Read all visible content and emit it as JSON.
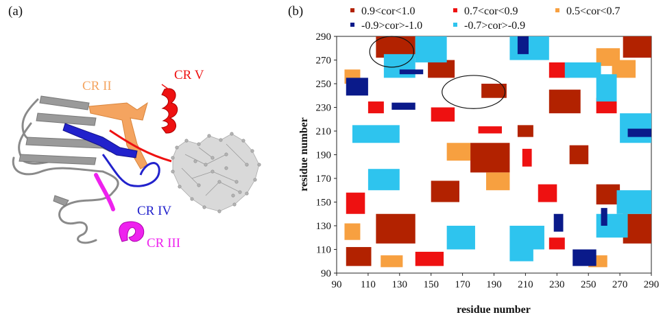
{
  "figure": {
    "panel_a_label": "(a)",
    "panel_b_label": "(b)"
  },
  "structure_labels": [
    {
      "text": "CR II",
      "color": "#f4a460"
    },
    {
      "text": "CR V",
      "color": "#ee1111"
    },
    {
      "text": "CR IV",
      "color": "#2222cc"
    },
    {
      "text": "CR III",
      "color": "#ee22ee"
    }
  ],
  "legend": [
    {
      "label": "0.9<cor<1.0",
      "color": "#b22200"
    },
    {
      "label": "0.7<cor<0.9",
      "color": "#ee1111"
    },
    {
      "label": "0.5<cor<0.7",
      "color": "#f7a040"
    },
    {
      "label": "-0.9>cor>-1.0",
      "color": "#0a1a8a"
    },
    {
      "label": "-0.7>cor>-0.9",
      "color": "#2ec4ee"
    }
  ],
  "chart_data": {
    "type": "heatmap",
    "xlabel": "residue number",
    "ylabel": "residue number",
    "xlim": [
      90,
      290
    ],
    "ylim": [
      90,
      290
    ],
    "x_ticks": [
      90,
      110,
      130,
      150,
      170,
      190,
      210,
      230,
      250,
      270,
      290
    ],
    "y_ticks": [
      90,
      110,
      130,
      150,
      170,
      190,
      210,
      230,
      250,
      270,
      290
    ],
    "blocks": [
      {
        "x": [
          115,
          140
        ],
        "y": [
          115,
          140
        ],
        "cls": "0.9<cor<1.0"
      },
      {
        "x": [
          175,
          200
        ],
        "y": [
          175,
          200
        ],
        "cls": "0.9<cor<1.0"
      },
      {
        "x": [
          272,
          290
        ],
        "y": [
          115,
          140
        ],
        "cls": "0.9<cor<1.0"
      },
      {
        "x": [
          115,
          140
        ],
        "y": [
          272,
          290
        ],
        "cls": "0.9<cor<1.0"
      },
      {
        "x": [
          272,
          290
        ],
        "y": [
          272,
          290
        ],
        "cls": "0.9<cor<1.0"
      },
      {
        "x": [
          182,
          198
        ],
        "y": [
          238,
          250
        ],
        "cls": "0.9<cor<1.0"
      },
      {
        "x": [
          238,
          250
        ],
        "y": [
          182,
          198
        ],
        "cls": "0.9<cor<1.0"
      },
      {
        "x": [
          96,
          112
        ],
        "y": [
          96,
          112
        ],
        "cls": "0.9<cor<1.0"
      },
      {
        "x": [
          148,
          165
        ],
        "y": [
          255,
          270
        ],
        "cls": "0.9<cor<1.0"
      },
      {
        "x": [
          255,
          270
        ],
        "y": [
          148,
          165
        ],
        "cls": "0.9<cor<1.0"
      },
      {
        "x": [
          150,
          168
        ],
        "y": [
          150,
          168
        ],
        "cls": "0.9<cor<1.0"
      },
      {
        "x": [
          225,
          245
        ],
        "y": [
          225,
          245
        ],
        "cls": "0.9<cor<1.0"
      },
      {
        "x": [
          205,
          215
        ],
        "y": [
          205,
          215
        ],
        "cls": "0.9<cor<1.0"
      },
      {
        "x": [
          110,
          120
        ],
        "y": [
          225,
          235
        ],
        "cls": "0.7<cor<0.9"
      },
      {
        "x": [
          225,
          235
        ],
        "y": [
          110,
          120
        ],
        "cls": "0.7<cor<0.9"
      },
      {
        "x": [
          255,
          268
        ],
        "y": [
          225,
          238
        ],
        "cls": "0.7<cor<0.9"
      },
      {
        "x": [
          225,
          238
        ],
        "y": [
          255,
          268
        ],
        "cls": "0.7<cor<0.9"
      },
      {
        "x": [
          208,
          214
        ],
        "y": [
          180,
          195
        ],
        "cls": "0.7<cor<0.9"
      },
      {
        "x": [
          180,
          195
        ],
        "y": [
          208,
          214
        ],
        "cls": "0.7<cor<0.9"
      },
      {
        "x": [
          150,
          165
        ],
        "y": [
          218,
          230
        ],
        "cls": "0.7<cor<0.9"
      },
      {
        "x": [
          218,
          230
        ],
        "y": [
          150,
          165
        ],
        "cls": "0.7<cor<0.9"
      },
      {
        "x": [
          96,
          108
        ],
        "y": [
          140,
          158
        ],
        "cls": "0.7<cor<0.9"
      },
      {
        "x": [
          140,
          158
        ],
        "y": [
          96,
          108
        ],
        "cls": "0.7<cor<0.9"
      },
      {
        "x": [
          95,
          105
        ],
        "y": [
          250,
          262
        ],
        "cls": "0.5<cor<0.7"
      },
      {
        "x": [
          250,
          262
        ],
        "y": [
          95,
          105
        ],
        "cls": "0.5<cor<0.7"
      },
      {
        "x": [
          160,
          175
        ],
        "y": [
          185,
          200
        ],
        "cls": "0.5<cor<0.7"
      },
      {
        "x": [
          185,
          200
        ],
        "y": [
          160,
          175
        ],
        "cls": "0.5<cor<0.7"
      },
      {
        "x": [
          255,
          270
        ],
        "y": [
          265,
          280
        ],
        "cls": "0.5<cor<0.7"
      },
      {
        "x": [
          265,
          280
        ],
        "y": [
          255,
          270
        ],
        "cls": "0.5<cor<0.7"
      },
      {
        "x": [
          118,
          132
        ],
        "y": [
          95,
          105
        ],
        "cls": "0.5<cor<0.7"
      },
      {
        "x": [
          95,
          105
        ],
        "y": [
          118,
          132
        ],
        "cls": "0.5<cor<0.7"
      },
      {
        "x": [
          100,
          130
        ],
        "y": [
          200,
          215
        ],
        "cls": "-0.7>cor>-0.9"
      },
      {
        "x": [
          200,
          215
        ],
        "y": [
          100,
          130
        ],
        "cls": "-0.7>cor>-0.9"
      },
      {
        "x": [
          140,
          160
        ],
        "y": [
          268,
          290
        ],
        "cls": "-0.7>cor>-0.9"
      },
      {
        "x": [
          268,
          290
        ],
        "y": [
          140,
          160
        ],
        "cls": "-0.7>cor>-0.9"
      },
      {
        "x": [
          200,
          225
        ],
        "y": [
          270,
          290
        ],
        "cls": "-0.7>cor>-0.9"
      },
      {
        "x": [
          270,
          290
        ],
        "y": [
          200,
          225
        ],
        "cls": "-0.7>cor>-0.9"
      },
      {
        "x": [
          160,
          178
        ],
        "y": [
          110,
          130
        ],
        "cls": "-0.7>cor>-0.9"
      },
      {
        "x": [
          110,
          130
        ],
        "y": [
          160,
          178
        ],
        "cls": "-0.7>cor>-0.9"
      },
      {
        "x": [
          235,
          258
        ],
        "y": [
          255,
          268
        ],
        "cls": "-0.7>cor>-0.9"
      },
      {
        "x": [
          255,
          268
        ],
        "y": [
          235,
          258
        ],
        "cls": "-0.7>cor>-0.9"
      },
      {
        "x": [
          255,
          275
        ],
        "y": [
          120,
          140
        ],
        "cls": "-0.7>cor>-0.9"
      },
      {
        "x": [
          120,
          140
        ],
        "y": [
          255,
          275
        ],
        "cls": "-0.7>cor>-0.9"
      },
      {
        "x": [
          208,
          222
        ],
        "y": [
          110,
          130
        ],
        "cls": "-0.7>cor>-0.9"
      },
      {
        "x": [
          96,
          110
        ],
        "y": [
          240,
          255
        ],
        "cls": "-0.9>cor>-1.0"
      },
      {
        "x": [
          240,
          255
        ],
        "y": [
          96,
          110
        ],
        "cls": "-0.9>cor>-1.0"
      },
      {
        "x": [
          205,
          212
        ],
        "y": [
          275,
          290
        ],
        "cls": "-0.9>cor>-1.0"
      },
      {
        "x": [
          275,
          290
        ],
        "y": [
          205,
          212
        ],
        "cls": "-0.9>cor>-1.0"
      },
      {
        "x": [
          228,
          234
        ],
        "y": [
          125,
          140
        ],
        "cls": "-0.9>cor>-1.0"
      },
      {
        "x": [
          125,
          140
        ],
        "y": [
          228,
          234
        ],
        "cls": "-0.9>cor>-1.0"
      },
      {
        "x": [
          258,
          262
        ],
        "y": [
          130,
          145
        ],
        "cls": "-0.9>cor>-1.0"
      },
      {
        "x": [
          130,
          145
        ],
        "y": [
          258,
          262
        ],
        "cls": "-0.9>cor>-1.0"
      }
    ],
    "ellipses": [
      {
        "cx": 125,
        "cy": 277,
        "rx": 14,
        "ry": 13
      },
      {
        "cx": 177,
        "cy": 243,
        "rx": 20,
        "ry": 14
      }
    ]
  }
}
